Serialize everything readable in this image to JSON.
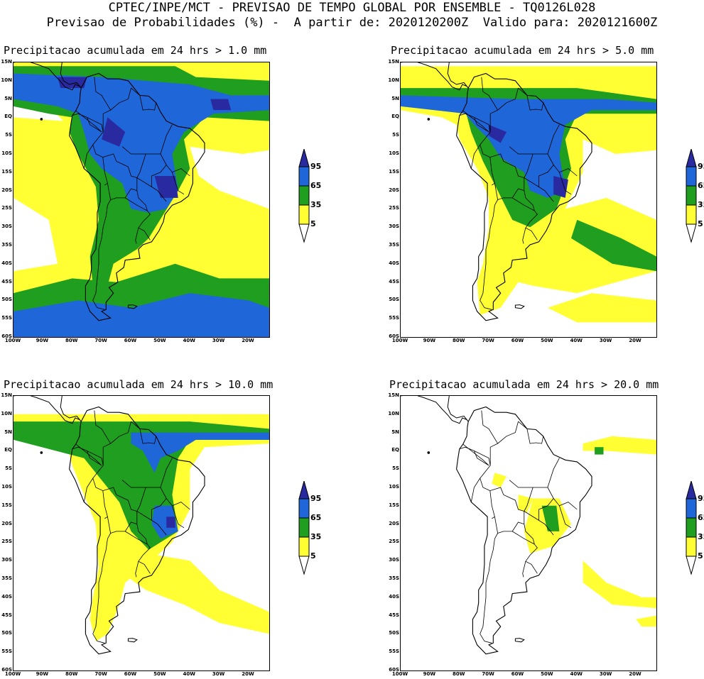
{
  "header": {
    "line1": "CPTEC/INPE/MCT - PREVISAO DE TEMPO GLOBAL POR ENSEMBLE - TQ0126L028",
    "line2": "Previsao de Probabilidades (%) -  A partir de: 2020120200Z  Valido para: 2020121600Z"
  },
  "panels": [
    {
      "title": "Precipitacao acumulada em 24 hrs > 1.0 mm"
    },
    {
      "title": "Precipitacao acumulada em 24 hrs > 5.0 mm"
    },
    {
      "title": "Precipitacao acumulada em 24 hrs > 10.0 mm"
    },
    {
      "title": "Precipitacao acumulada em 24 hrs > 20.0 mm"
    }
  ],
  "lat_labels": [
    "15N",
    "10N",
    "5N",
    "EQ",
    "5S",
    "10S",
    "15S",
    "20S",
    "25S",
    "30S",
    "35S",
    "40S",
    "45S",
    "50S",
    "55S",
    "60S"
  ],
  "lon_labels": [
    "100W",
    "90W",
    "80W",
    "70W",
    "60W",
    "50W",
    "40W",
    "30W",
    "20W"
  ],
  "colorbar": {
    "levels": [
      "95",
      "65",
      "35",
      "5"
    ],
    "colors": {
      "yellow": "#ffff33",
      "green": "#1f9e1f",
      "blue": "#1f66d9",
      "navy": "#2a2aa0"
    }
  }
}
